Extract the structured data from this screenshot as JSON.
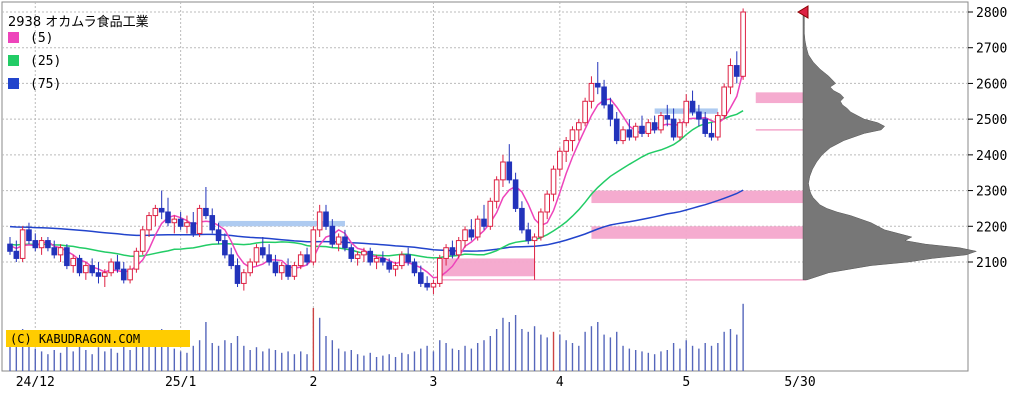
{
  "chart_data": {
    "type": "candlestick",
    "title": "2938 オカムラ食品工業",
    "credit": "(C) KABUDRAGON.COM",
    "legend": [
      {
        "name": "(5)",
        "color": "#ee44bb"
      },
      {
        "name": "(25)",
        "color": "#22cc66"
      },
      {
        "name": "(75)",
        "color": "#2244cc"
      }
    ],
    "y_ticks": [
      2100,
      2200,
      2300,
      2400,
      2500,
      2600,
      2700,
      2800
    ],
    "ylim": [
      2000,
      2830
    ],
    "x_labels": [
      {
        "label": "24/12",
        "index": 4
      },
      {
        "label": "25/1",
        "index": 27
      },
      {
        "label": "2",
        "index": 48
      },
      {
        "label": "3",
        "index": 67
      },
      {
        "label": "4",
        "index": 87
      },
      {
        "label": "5",
        "index": 107
      },
      {
        "label": "5/30",
        "index": 125
      }
    ],
    "colors": {
      "up": "#dd2244",
      "down": "#2233bb",
      "volume": "#5566bb",
      "profile": "#777777",
      "ma5": "#ee44bb",
      "ma25": "#22cc66",
      "ma75": "#2244cc",
      "zone": "#f4a6cc",
      "zone_blue": "#aac8f0",
      "credit_bg": "#ffcc00"
    },
    "zones": [
      {
        "from": 68,
        "to": 83,
        "low": 2060,
        "high": 2110,
        "color": "zone"
      },
      {
        "from": 92,
        "to": 126,
        "low": 2165,
        "high": 2200,
        "color": "zone"
      },
      {
        "from": 92,
        "to": 126,
        "low": 2265,
        "high": 2300,
        "color": "zone"
      },
      {
        "from": 118,
        "to": 126,
        "low": 2545,
        "high": 2575,
        "color": "zone"
      },
      {
        "from": 33,
        "to": 53,
        "low": 2200,
        "high": 2215,
        "color": "zone_blue"
      },
      {
        "from": 102,
        "to": 112,
        "low": 2515,
        "high": 2530,
        "color": "zone_blue"
      }
    ],
    "hlines": [
      {
        "from": 68,
        "to": 126,
        "value": 2050,
        "color": "#f4a6cc"
      },
      {
        "from": 118,
        "to": 126,
        "value": 2470,
        "color": "#f4a6cc"
      }
    ],
    "profile": [
      [
        2050,
        6
      ],
      [
        2070,
        38
      ],
      [
        2090,
        100
      ],
      [
        2100,
        155
      ],
      [
        2110,
        190
      ],
      [
        2120,
        240
      ],
      [
        2130,
        255
      ],
      [
        2140,
        230
      ],
      [
        2150,
        180
      ],
      [
        2160,
        150
      ],
      [
        2170,
        160
      ],
      [
        2180,
        140
      ],
      [
        2190,
        120
      ],
      [
        2200,
        110
      ],
      [
        2210,
        100
      ],
      [
        2220,
        85
      ],
      [
        2230,
        70
      ],
      [
        2240,
        50
      ],
      [
        2250,
        35
      ],
      [
        2260,
        25
      ],
      [
        2270,
        20
      ],
      [
        2280,
        15
      ],
      [
        2290,
        12
      ],
      [
        2300,
        10
      ],
      [
        2320,
        8
      ],
      [
        2340,
        10
      ],
      [
        2360,
        14
      ],
      [
        2380,
        20
      ],
      [
        2400,
        28
      ],
      [
        2420,
        40
      ],
      [
        2440,
        60
      ],
      [
        2460,
        90
      ],
      [
        2470,
        115
      ],
      [
        2480,
        120
      ],
      [
        2490,
        110
      ],
      [
        2500,
        90
      ],
      [
        2510,
        80
      ],
      [
        2520,
        70
      ],
      [
        2530,
        65
      ],
      [
        2540,
        58
      ],
      [
        2550,
        55
      ],
      [
        2560,
        60
      ],
      [
        2570,
        55
      ],
      [
        2580,
        45
      ],
      [
        2590,
        40
      ],
      [
        2600,
        48
      ],
      [
        2620,
        38
      ],
      [
        2640,
        25
      ],
      [
        2660,
        15
      ],
      [
        2680,
        8
      ],
      [
        2700,
        5
      ],
      [
        2720,
        3
      ],
      [
        2740,
        2
      ],
      [
        2760,
        2
      ],
      [
        2780,
        2
      ],
      [
        2800,
        2
      ]
    ],
    "candles": [
      [
        2150,
        2170,
        2120,
        2130,
        24
      ],
      [
        2130,
        2160,
        2100,
        2110,
        18
      ],
      [
        2110,
        2200,
        2100,
        2190,
        30
      ],
      [
        2190,
        2210,
        2150,
        2160,
        22
      ],
      [
        2160,
        2180,
        2130,
        2140,
        16
      ],
      [
        2140,
        2170,
        2120,
        2160,
        14
      ],
      [
        2160,
        2170,
        2130,
        2140,
        12
      ],
      [
        2140,
        2160,
        2110,
        2120,
        15
      ],
      [
        2120,
        2150,
        2100,
        2140,
        13
      ],
      [
        2140,
        2150,
        2080,
        2090,
        20
      ],
      [
        2090,
        2120,
        2070,
        2110,
        14
      ],
      [
        2110,
        2120,
        2060,
        2070,
        18
      ],
      [
        2070,
        2100,
        2050,
        2090,
        15
      ],
      [
        2090,
        2110,
        2060,
        2070,
        12
      ],
      [
        2070,
        2100,
        2040,
        2060,
        17
      ],
      [
        2060,
        2080,
        2030,
        2070,
        14
      ],
      [
        2070,
        2110,
        2060,
        2100,
        16
      ],
      [
        2100,
        2120,
        2070,
        2080,
        13
      ],
      [
        2080,
        2100,
        2040,
        2050,
        18
      ],
      [
        2050,
        2090,
        2040,
        2080,
        15
      ],
      [
        2080,
        2140,
        2070,
        2130,
        22
      ],
      [
        2130,
        2200,
        2120,
        2190,
        25
      ],
      [
        2190,
        2240,
        2170,
        2230,
        28
      ],
      [
        2230,
        2260,
        2200,
        2250,
        24
      ],
      [
        2250,
        2300,
        2220,
        2240,
        30
      ],
      [
        2240,
        2280,
        2200,
        2210,
        20
      ],
      [
        2210,
        2230,
        2180,
        2220,
        16
      ],
      [
        2220,
        2240,
        2190,
        2200,
        14
      ],
      [
        2200,
        2230,
        2180,
        2210,
        13
      ],
      [
        2210,
        2240,
        2170,
        2180,
        18
      ],
      [
        2180,
        2260,
        2170,
        2250,
        22
      ],
      [
        2250,
        2310,
        2220,
        2230,
        35
      ],
      [
        2230,
        2250,
        2180,
        2190,
        20
      ],
      [
        2190,
        2210,
        2150,
        2160,
        18
      ],
      [
        2160,
        2180,
        2110,
        2120,
        22
      ],
      [
        2120,
        2140,
        2080,
        2090,
        20
      ],
      [
        2090,
        2110,
        2030,
        2040,
        25
      ],
      [
        2040,
        2080,
        2020,
        2070,
        18
      ],
      [
        2070,
        2110,
        2060,
        2100,
        15
      ],
      [
        2100,
        2150,
        2090,
        2140,
        17
      ],
      [
        2140,
        2170,
        2110,
        2120,
        14
      ],
      [
        2120,
        2150,
        2090,
        2100,
        16
      ],
      [
        2100,
        2120,
        2060,
        2070,
        15
      ],
      [
        2070,
        2100,
        2050,
        2090,
        13
      ],
      [
        2090,
        2110,
        2050,
        2060,
        14
      ],
      [
        2060,
        2100,
        2050,
        2090,
        12
      ],
      [
        2090,
        2130,
        2080,
        2120,
        14
      ],
      [
        2120,
        2140,
        2090,
        2100,
        12
      ],
      [
        2100,
        2200,
        2090,
        2190,
        45
      ],
      [
        2190,
        2260,
        2170,
        2240,
        38
      ],
      [
        2240,
        2260,
        2190,
        2200,
        25
      ],
      [
        2200,
        2220,
        2140,
        2150,
        22
      ],
      [
        2150,
        2180,
        2130,
        2170,
        16
      ],
      [
        2170,
        2190,
        2130,
        2140,
        14
      ],
      [
        2140,
        2150,
        2100,
        2110,
        15
      ],
      [
        2110,
        2130,
        2090,
        2120,
        12
      ],
      [
        2120,
        2140,
        2100,
        2130,
        11
      ],
      [
        2130,
        2140,
        2090,
        2100,
        13
      ],
      [
        2100,
        2120,
        2080,
        2110,
        10
      ],
      [
        2110,
        2130,
        2090,
        2100,
        11
      ],
      [
        2100,
        2110,
        2070,
        2080,
        12
      ],
      [
        2080,
        2100,
        2060,
        2090,
        10
      ],
      [
        2090,
        2130,
        2080,
        2120,
        13
      ],
      [
        2120,
        2140,
        2090,
        2100,
        12
      ],
      [
        2100,
        2110,
        2060,
        2070,
        14
      ],
      [
        2070,
        2090,
        2030,
        2040,
        16
      ],
      [
        2040,
        2060,
        2020,
        2030,
        18
      ],
      [
        2030,
        2050,
        2010,
        2040,
        14
      ],
      [
        2040,
        2120,
        2030,
        2110,
        22
      ],
      [
        2110,
        2150,
        2090,
        2140,
        20
      ],
      [
        2140,
        2160,
        2110,
        2120,
        16
      ],
      [
        2120,
        2170,
        2110,
        2160,
        15
      ],
      [
        2160,
        2200,
        2140,
        2190,
        18
      ],
      [
        2190,
        2220,
        2160,
        2170,
        16
      ],
      [
        2170,
        2230,
        2160,
        2220,
        20
      ],
      [
        2220,
        2260,
        2190,
        2200,
        22
      ],
      [
        2200,
        2280,
        2190,
        2270,
        25
      ],
      [
        2270,
        2340,
        2250,
        2330,
        30
      ],
      [
        2330,
        2400,
        2310,
        2380,
        38
      ],
      [
        2380,
        2430,
        2320,
        2330,
        35
      ],
      [
        2330,
        2350,
        2240,
        2250,
        40
      ],
      [
        2250,
        2270,
        2180,
        2190,
        30
      ],
      [
        2190,
        2210,
        2150,
        2160,
        28
      ],
      [
        2160,
        2180,
        2050,
        2170,
        32
      ],
      [
        2170,
        2250,
        2160,
        2240,
        26
      ],
      [
        2240,
        2300,
        2220,
        2290,
        24
      ],
      [
        2290,
        2370,
        2270,
        2360,
        28
      ],
      [
        2360,
        2420,
        2340,
        2410,
        26
      ],
      [
        2410,
        2450,
        2380,
        2440,
        22
      ],
      [
        2440,
        2480,
        2410,
        2470,
        20
      ],
      [
        2470,
        2500,
        2440,
        2490,
        18
      ],
      [
        2490,
        2560,
        2480,
        2550,
        28
      ],
      [
        2550,
        2620,
        2530,
        2600,
        32
      ],
      [
        2600,
        2660,
        2570,
        2590,
        35
      ],
      [
        2590,
        2610,
        2530,
        2540,
        26
      ],
      [
        2540,
        2560,
        2480,
        2500,
        24
      ],
      [
        2500,
        2520,
        2430,
        2440,
        28
      ],
      [
        2440,
        2480,
        2430,
        2470,
        18
      ],
      [
        2470,
        2500,
        2440,
        2450,
        16
      ],
      [
        2450,
        2490,
        2440,
        2480,
        15
      ],
      [
        2480,
        2510,
        2450,
        2460,
        14
      ],
      [
        2460,
        2500,
        2450,
        2490,
        13
      ],
      [
        2490,
        2510,
        2460,
        2470,
        12
      ],
      [
        2470,
        2520,
        2460,
        2510,
        14
      ],
      [
        2510,
        2540,
        2480,
        2500,
        15
      ],
      [
        2500,
        2530,
        2440,
        2450,
        20
      ],
      [
        2450,
        2500,
        2440,
        2490,
        16
      ],
      [
        2490,
        2570,
        2480,
        2550,
        22
      ],
      [
        2550,
        2580,
        2510,
        2520,
        18
      ],
      [
        2520,
        2540,
        2480,
        2500,
        16
      ],
      [
        2500,
        2520,
        2450,
        2460,
        20
      ],
      [
        2460,
        2490,
        2440,
        2450,
        18
      ],
      [
        2450,
        2520,
        2440,
        2510,
        20
      ],
      [
        2510,
        2600,
        2500,
        2590,
        28
      ],
      [
        2590,
        2670,
        2570,
        2650,
        30
      ],
      [
        2650,
        2690,
        2600,
        2620,
        26
      ],
      [
        2620,
        2810,
        2610,
        2800,
        48
      ]
    ]
  }
}
